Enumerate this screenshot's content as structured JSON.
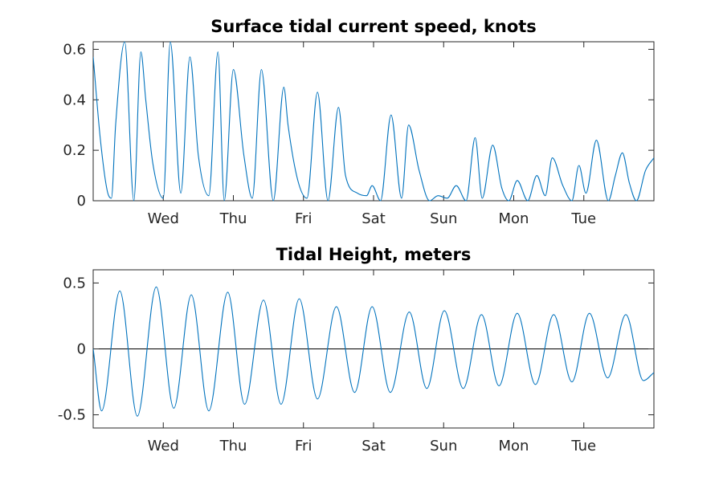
{
  "chart_data": [
    {
      "type": "line",
      "title": "Surface tidal current speed, knots",
      "xlabel": "",
      "ylabel": "",
      "x_unit": "days",
      "xlim": [
        0,
        8
      ],
      "ylim": [
        0,
        0.63
      ],
      "xtick_values": [
        1,
        2,
        3,
        4,
        5,
        6,
        7
      ],
      "xtick_labels": [
        "Wed",
        "Thu",
        "Fri",
        "Sat",
        "Sun",
        "Mon",
        "Tue"
      ],
      "ytick_values": [
        0,
        0.2,
        0.4,
        0.6
      ],
      "ytick_labels": [
        "0",
        "0.2",
        "0.4",
        "0.6"
      ],
      "grid": false,
      "line_color": "#0072BD",
      "series": [
        {
          "x": [
            0.0,
            0.1,
            0.2,
            0.26,
            0.32,
            0.45,
            0.58,
            0.68,
            0.75,
            0.85,
            1.0,
            1.1,
            1.25,
            1.38,
            1.5,
            1.65,
            1.78,
            1.87,
            2.0,
            2.15,
            2.27,
            2.4,
            2.57,
            2.72,
            2.78,
            2.92,
            3.05,
            3.2,
            3.35,
            3.5,
            3.6,
            3.77,
            3.9,
            3.98,
            4.1,
            4.25,
            4.4,
            4.5,
            4.65,
            4.8,
            4.92,
            5.05,
            5.18,
            5.32,
            5.45,
            5.55,
            5.7,
            5.83,
            5.93,
            6.05,
            6.2,
            6.33,
            6.45,
            6.55,
            6.7,
            6.83,
            6.93,
            7.03,
            7.18,
            7.35,
            7.45,
            7.55,
            7.65,
            7.75,
            7.88,
            8.0
          ],
          "y": [
            0.57,
            0.25,
            0.04,
            0.01,
            0.3,
            0.63,
            0.0,
            0.59,
            0.4,
            0.15,
            0.01,
            0.63,
            0.03,
            0.57,
            0.18,
            0.02,
            0.59,
            0.0,
            0.52,
            0.18,
            0.01,
            0.52,
            0.0,
            0.45,
            0.3,
            0.08,
            0.01,
            0.43,
            0.0,
            0.37,
            0.1,
            0.03,
            0.02,
            0.06,
            0.0,
            0.34,
            0.01,
            0.3,
            0.12,
            0.0,
            0.02,
            0.01,
            0.06,
            0.0,
            0.25,
            0.01,
            0.22,
            0.05,
            0.0,
            0.08,
            0.0,
            0.1,
            0.02,
            0.17,
            0.06,
            0.0,
            0.14,
            0.03,
            0.24,
            0.0,
            0.1,
            0.19,
            0.07,
            0.0,
            0.12,
            0.17
          ]
        }
      ]
    },
    {
      "type": "line",
      "title": "Tidal Height, meters",
      "xlabel": "",
      "ylabel": "",
      "x_unit": "days",
      "xlim": [
        0,
        8
      ],
      "ylim": [
        -0.6,
        0.6
      ],
      "xtick_values": [
        1,
        2,
        3,
        4,
        5,
        6,
        7
      ],
      "xtick_labels": [
        "Wed",
        "Thu",
        "Fri",
        "Sat",
        "Sun",
        "Mon",
        "Tue"
      ],
      "ytick_values": [
        -0.5,
        0,
        0.5
      ],
      "ytick_labels": [
        "-0.5",
        "0",
        "0.5"
      ],
      "grid": false,
      "zero_line": true,
      "line_color": "#0072BD",
      "series": [
        {
          "x": [
            0.0,
            0.12,
            0.38,
            0.63,
            0.9,
            1.15,
            1.4,
            1.65,
            1.92,
            2.16,
            2.43,
            2.68,
            2.94,
            3.2,
            3.47,
            3.73,
            3.98,
            4.24,
            4.51,
            4.76,
            5.01,
            5.28,
            5.54,
            5.79,
            6.05,
            6.31,
            6.57,
            6.83,
            7.08,
            7.34,
            7.6,
            7.85,
            8.0
          ],
          "y": [
            0.0,
            -0.47,
            0.44,
            -0.51,
            0.47,
            -0.45,
            0.41,
            -0.47,
            0.43,
            -0.42,
            0.37,
            -0.42,
            0.38,
            -0.38,
            0.32,
            -0.33,
            0.32,
            -0.33,
            0.28,
            -0.3,
            0.29,
            -0.3,
            0.26,
            -0.28,
            0.27,
            -0.27,
            0.26,
            -0.25,
            0.27,
            -0.22,
            0.26,
            -0.24,
            -0.18
          ]
        }
      ]
    }
  ]
}
